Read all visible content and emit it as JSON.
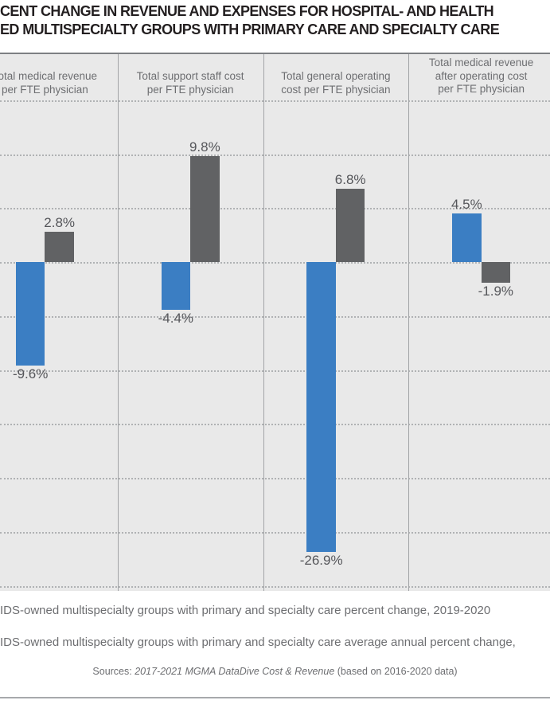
{
  "title": {
    "line1": "CENT CHANGE IN REVENUE AND EXPENSES FOR HOSPITAL- AND HEALTH",
    "line2": "ED MULTISPECIALTY GROUPS WITH PRIMARY CARE AND SPECIALTY CARE"
  },
  "chart_data": {
    "type": "bar",
    "unit": "percent",
    "ylim": [
      -30,
      15
    ],
    "gridline_step": 5,
    "grid": "horizontal-dotted",
    "legend_position": "bottom",
    "categories": [
      "Total medical revenue per FTE physician",
      "Total support staff cost per FTE physician",
      "Total general operating cost per FTE physician",
      "Total medical revenue after operating cost per FTE physician"
    ],
    "series": [
      {
        "name": "IDS-owned multispecialty groups with primary and specialty care percent change, 2019-2020",
        "color": "#3b7ec3",
        "values": [
          -9.6,
          -4.4,
          -26.9,
          4.5
        ]
      },
      {
        "name": "IDS-owned multispecialty groups with primary and specialty care average annual percent change,",
        "color": "#616264",
        "values": [
          2.8,
          9.8,
          6.8,
          -1.9
        ]
      }
    ],
    "panels": [
      {
        "label_lines": [
          "Total medical revenue",
          "per FTE physician"
        ],
        "blue": -9.6,
        "gray": 2.8,
        "blue_label": "-9.6%",
        "gray_label": "2.8%"
      },
      {
        "label_lines": [
          "Total support staff cost",
          "per FTE physician"
        ],
        "blue": -4.4,
        "gray": 9.8,
        "blue_label": "-4.4%",
        "gray_label": "9.8%"
      },
      {
        "label_lines": [
          "Total general operating",
          "cost per FTE physician"
        ],
        "blue": -26.9,
        "gray": 6.8,
        "blue_label": "-26.9%",
        "gray_label": "6.8%"
      },
      {
        "label_lines": [
          "Total medical revenue",
          "after operating cost",
          "per FTE physician"
        ],
        "blue": 4.5,
        "gray": -1.9,
        "blue_label": "4.5%",
        "gray_label": "-1.9%"
      }
    ]
  },
  "legend": {
    "items": [
      {
        "label": "IDS-owned multispecialty groups with primary and specialty care percent change, 2019-2020",
        "color": "#3b7ec3"
      },
      {
        "label": "IDS-owned multispecialty groups with primary and specialty care average annual percent change,",
        "color": "#616264"
      }
    ]
  },
  "source": {
    "prefix": "Sources: ",
    "italic": "2017-2021 MGMA DataDive Cost & Revenue",
    "suffix": " (based on 2016-2020 data)"
  },
  "colors": {
    "blue_bar": "#3b7ec3",
    "gray_bar": "#616264",
    "chart_background": "#e9e9e9",
    "title_text": "#231f20",
    "gray_text": "#6d6e71"
  }
}
